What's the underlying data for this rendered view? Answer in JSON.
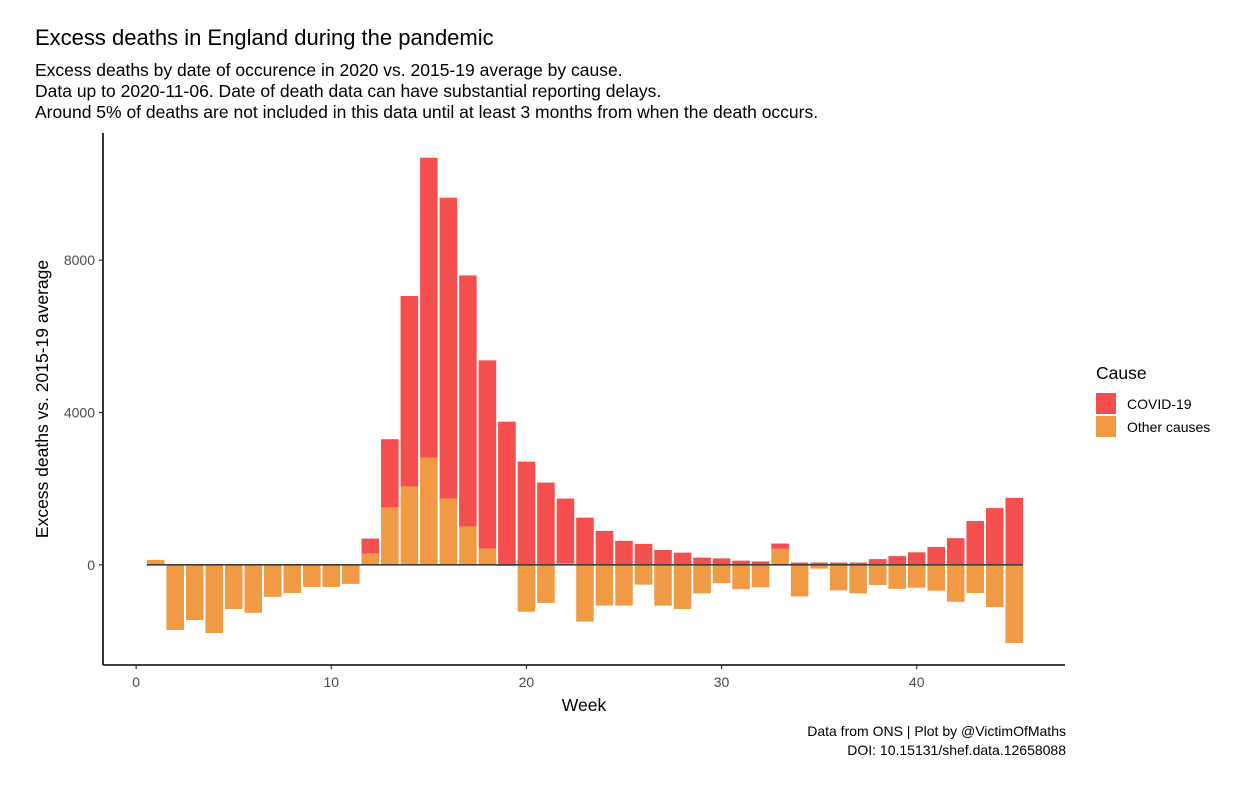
{
  "chart_data": {
    "type": "bar",
    "stacked": true,
    "title": "Excess deaths in England during the pandemic",
    "subtitle": [
      "Excess deaths by date of occurence in 2020 vs. 2015-19 average by cause.",
      "Data up to 2020-11-06. Date of death data can have substantial reporting delays.",
      "Around 5% of deaths are not included in this data until at least 3 months from when the death occurs."
    ],
    "xlabel": "Week",
    "ylabel": "Excess deaths vs. 2015-19 average",
    "caption": [
      "Data from ONS | Plot by @VictimOfMaths",
      "DOI: 10.15131/shef.data.12658088"
    ],
    "xlim": [
      -1.7,
      47.6
    ],
    "ylim": [
      -2630,
      11340
    ],
    "xticks": [
      0,
      10,
      20,
      30,
      40
    ],
    "yticks": [
      0,
      4000,
      8000
    ],
    "grid": false,
    "legend": {
      "title": "Cause",
      "position": "right",
      "entries": [
        {
          "label": "COVID-19",
          "color": "#F44E4E"
        },
        {
          "label": "Other causes",
          "color": "#F09A45"
        }
      ]
    },
    "x": [
      1,
      2,
      3,
      4,
      5,
      6,
      7,
      8,
      9,
      10,
      11,
      12,
      13,
      14,
      15,
      16,
      17,
      18,
      19,
      20,
      21,
      22,
      23,
      24,
      25,
      26,
      27,
      28,
      29,
      30,
      31,
      32,
      33,
      34,
      35,
      36,
      37,
      38,
      39,
      40,
      41,
      42,
      43,
      44,
      45
    ],
    "series": [
      {
        "name": "Other causes",
        "color": "#F09A45",
        "values": [
          130,
          -1710,
          -1450,
          -1790,
          -1160,
          -1260,
          -840,
          -740,
          -580,
          -580,
          -500,
          300,
          1510,
          2060,
          2820,
          1740,
          1010,
          430,
          -30,
          -1230,
          -1000,
          40,
          -1490,
          -1070,
          -1070,
          -520,
          -1070,
          -1160,
          -750,
          -480,
          -640,
          -590,
          420,
          -830,
          -100,
          -670,
          -750,
          -530,
          -630,
          -600,
          -680,
          -970,
          -740,
          -1110,
          -2050
        ]
      },
      {
        "name": "COVID-19",
        "color": "#F44E4E",
        "values": [
          0,
          0,
          0,
          0,
          0,
          0,
          0,
          0,
          0,
          0,
          0,
          390,
          1790,
          5000,
          7870,
          7900,
          6590,
          4940,
          3760,
          2710,
          2160,
          1700,
          1240,
          890,
          630,
          550,
          390,
          320,
          190,
          170,
          110,
          90,
          140,
          60,
          60,
          60,
          60,
          150,
          230,
          330,
          470,
          700,
          1150,
          1490,
          1760
        ]
      }
    ]
  }
}
